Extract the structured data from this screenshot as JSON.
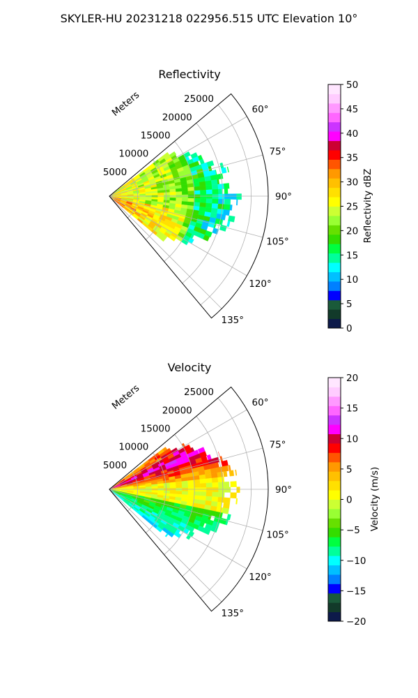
{
  "figure": {
    "suptitle": "SKYLER-HU  20231218  022956.515 UTC Elevation 10°"
  },
  "chart_data": [
    {
      "type": "heatmap",
      "subtype": "polar-sector-ppi",
      "title": "Reflectivity",
      "range_label": "Meters",
      "range_ticks": [
        5000,
        10000,
        15000,
        20000,
        25000
      ],
      "range_tick_labels": [
        "5000",
        "10000",
        "15000",
        "20000",
        "25000"
      ],
      "rmax": 28000,
      "theta_range_deg": [
        50,
        140
      ],
      "angle_ticks_deg": [
        60,
        75,
        90,
        105,
        120,
        135
      ],
      "angle_tick_labels": [
        "60°",
        "75°",
        "90°",
        "105°",
        "120°",
        "135°"
      ],
      "colorbar": {
        "label": "Reflectivity dBZ",
        "min": 0,
        "max": 50,
        "ticks": [
          0,
          5,
          10,
          15,
          20,
          25,
          30,
          35,
          40,
          45,
          50
        ],
        "tick_labels": [
          "0",
          "5",
          "10",
          "15",
          "20",
          "25",
          "30",
          "35",
          "40",
          "45",
          "50"
        ],
        "colors": [
          "#0d1a4a",
          "#123a2a",
          "#1a5a3a",
          "#0000ff",
          "#0080ff",
          "#00c0ff",
          "#00ffff",
          "#00ff9a",
          "#00ff40",
          "#33dd00",
          "#66e000",
          "#99ff33",
          "#ccff33",
          "#ffff00",
          "#ffe000",
          "#ffc000",
          "#ff9900",
          "#ff5500",
          "#ff0000",
          "#cc0033",
          "#ff00ff",
          "#cc33ff",
          "#ff66ff",
          "#ff99ff",
          "#ffccff",
          "#ffe6ff"
        ]
      },
      "echo_region": {
        "theta_deg": [
          53,
          130
        ],
        "r_max_m": 23500
      }
    },
    {
      "type": "heatmap",
      "subtype": "polar-sector-ppi",
      "title": "Velocity",
      "range_label": "Meters",
      "range_ticks": [
        5000,
        10000,
        15000,
        20000,
        25000
      ],
      "range_tick_labels": [
        "5000",
        "10000",
        "15000",
        "20000",
        "25000"
      ],
      "rmax": 28000,
      "theta_range_deg": [
        50,
        140
      ],
      "angle_ticks_deg": [
        60,
        75,
        90,
        105,
        120,
        135
      ],
      "angle_tick_labels": [
        "60°",
        "75°",
        "90°",
        "105°",
        "120°",
        "135°"
      ],
      "colorbar": {
        "label": "Velocity (m/s)",
        "min": -20,
        "max": 20,
        "ticks": [
          -20,
          -15,
          -10,
          -5,
          0,
          5,
          10,
          15,
          20
        ],
        "tick_labels": [
          "−20",
          "−15",
          "−10",
          "−5",
          "0",
          "5",
          "10",
          "15",
          "20"
        ],
        "colors": [
          "#0d1a4a",
          "#123a2a",
          "#1a5a3a",
          "#0000ff",
          "#0080ff",
          "#00c0ff",
          "#00ffff",
          "#00ff9a",
          "#00ff40",
          "#33dd00",
          "#66e000",
          "#99ff33",
          "#ccff33",
          "#ffff00",
          "#ffe000",
          "#ffc000",
          "#ff9900",
          "#ff5500",
          "#ff0000",
          "#cc0033",
          "#ff00ff",
          "#cc33ff",
          "#ff66ff",
          "#ff99ff",
          "#ffccff",
          "#ffe6ff"
        ]
      },
      "echo_region": {
        "theta_deg": [
          53,
          130
        ],
        "r_max_m": 23500
      }
    }
  ]
}
